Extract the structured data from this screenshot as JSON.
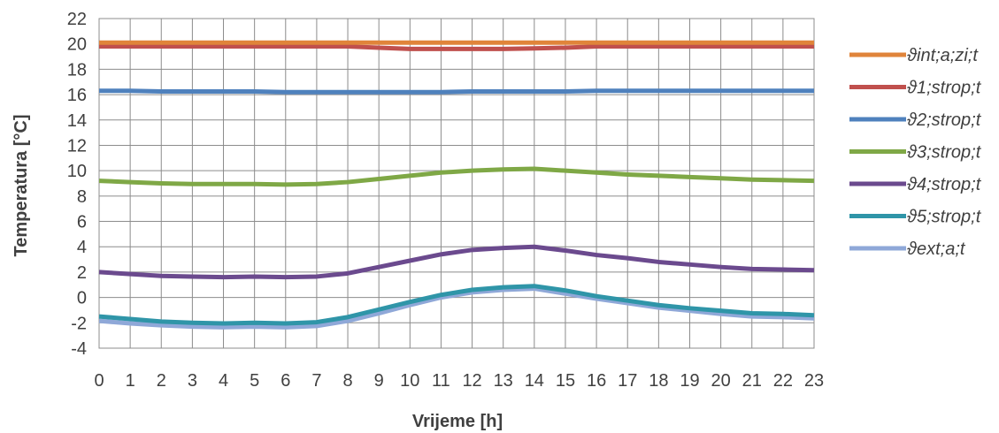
{
  "chart_data": {
    "type": "line",
    "title": "",
    "xlabel": "Vrijeme [h]",
    "ylabel": "Temperatura [°C]",
    "x": [
      0,
      1,
      2,
      3,
      4,
      5,
      6,
      7,
      8,
      9,
      10,
      11,
      12,
      13,
      14,
      15,
      16,
      17,
      18,
      19,
      20,
      21,
      22,
      23
    ],
    "ylim": [
      -4,
      22
    ],
    "yticks": [
      -4,
      -2,
      0,
      2,
      4,
      6,
      8,
      10,
      12,
      14,
      16,
      18,
      20,
      22
    ],
    "grid": true,
    "legend_position": "right",
    "series": [
      {
        "name": "ϑint;a;zi;t",
        "color": "#e0843a",
        "values": [
          20.1,
          20.1,
          20.1,
          20.1,
          20.1,
          20.1,
          20.1,
          20.1,
          20.1,
          20.1,
          20.1,
          20.1,
          20.1,
          20.1,
          20.1,
          20.1,
          20.1,
          20.1,
          20.1,
          20.1,
          20.1,
          20.1,
          20.1,
          20.1
        ]
      },
      {
        "name": "ϑ1;strop;t",
        "color": "#c0504d",
        "values": [
          19.8,
          19.8,
          19.8,
          19.8,
          19.8,
          19.8,
          19.8,
          19.8,
          19.8,
          19.7,
          19.6,
          19.6,
          19.6,
          19.6,
          19.65,
          19.7,
          19.8,
          19.8,
          19.8,
          19.8,
          19.8,
          19.8,
          19.8,
          19.8
        ]
      },
      {
        "name": "ϑ2;strop;t",
        "color": "#4f81bd",
        "values": [
          16.3,
          16.3,
          16.25,
          16.25,
          16.25,
          16.25,
          16.2,
          16.2,
          16.2,
          16.2,
          16.2,
          16.2,
          16.25,
          16.25,
          16.25,
          16.25,
          16.3,
          16.3,
          16.3,
          16.3,
          16.3,
          16.3,
          16.3,
          16.3
        ]
      },
      {
        "name": "ϑ3;strop;t",
        "color": "#7fa846",
        "values": [
          9.2,
          9.1,
          9.0,
          8.95,
          8.95,
          8.95,
          8.9,
          8.95,
          9.1,
          9.35,
          9.6,
          9.85,
          10.0,
          10.1,
          10.15,
          10.0,
          9.85,
          9.7,
          9.6,
          9.5,
          9.4,
          9.3,
          9.25,
          9.2
        ]
      },
      {
        "name": "ϑ4;strop;t",
        "color": "#6b4a8e",
        "values": [
          2.0,
          1.85,
          1.7,
          1.65,
          1.6,
          1.65,
          1.6,
          1.65,
          1.9,
          2.4,
          2.9,
          3.4,
          3.75,
          3.9,
          4.0,
          3.7,
          3.35,
          3.1,
          2.8,
          2.6,
          2.4,
          2.25,
          2.2,
          2.15
        ]
      },
      {
        "name": "ϑ5;strop;t",
        "color": "#2f95a8",
        "values": [
          -1.5,
          -1.7,
          -1.9,
          -2.0,
          -2.05,
          -2.0,
          -2.05,
          -1.95,
          -1.55,
          -0.95,
          -0.35,
          0.2,
          0.6,
          0.8,
          0.9,
          0.55,
          0.1,
          -0.25,
          -0.6,
          -0.85,
          -1.05,
          -1.25,
          -1.3,
          -1.4
        ]
      },
      {
        "name": "ϑext;a;t",
        "color": "#8fa8d8",
        "values": [
          -1.85,
          -2.05,
          -2.2,
          -2.3,
          -2.35,
          -2.3,
          -2.35,
          -2.25,
          -1.85,
          -1.25,
          -0.6,
          0.0,
          0.4,
          0.6,
          0.7,
          0.3,
          -0.1,
          -0.45,
          -0.8,
          -1.05,
          -1.3,
          -1.5,
          -1.55,
          -1.65
        ]
      }
    ]
  }
}
